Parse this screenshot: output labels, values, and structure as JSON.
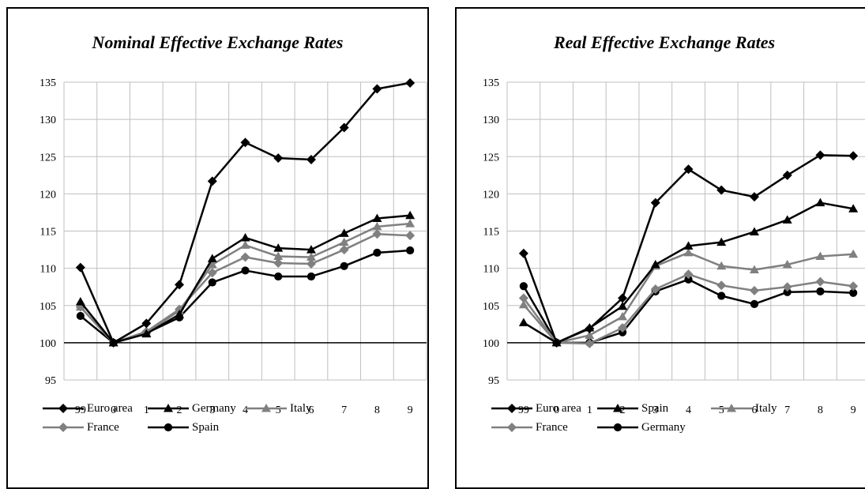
{
  "chart_data": [
    {
      "type": "line",
      "title": "Nominal Effective Exchange Rates",
      "categories": [
        "99",
        "0",
        "1",
        "2",
        "3",
        "4",
        "5",
        "6",
        "7",
        "8",
        "9"
      ],
      "ylim": [
        95,
        135
      ],
      "yticks": [
        "95",
        "100",
        "105",
        "110",
        "115",
        "120",
        "125",
        "130",
        "135"
      ],
      "grid": true,
      "legend_position": "bottom",
      "series": [
        {
          "name": "Euro area",
          "color": "#000000",
          "marker": "diamond",
          "values": [
            110.1,
            100,
            102.6,
            107.8,
            121.7,
            126.9,
            124.8,
            124.6,
            128.9,
            134.1,
            134.9
          ]
        },
        {
          "name": "Germany",
          "color": "#000000",
          "marker": "triangle",
          "values": [
            105.5,
            100,
            101.2,
            103.8,
            111.3,
            114.1,
            112.7,
            112.5,
            114.7,
            116.7,
            117.1
          ]
        },
        {
          "name": "Italy",
          "color": "#808080",
          "marker": "triangle",
          "values": [
            104.8,
            100,
            101.3,
            104.3,
            110.5,
            113.1,
            111.6,
            111.5,
            113.5,
            115.6,
            116.0
          ]
        },
        {
          "name": "France",
          "color": "#808080",
          "marker": "diamond",
          "values": [
            104.8,
            100,
            101.5,
            104.5,
            109.4,
            111.5,
            110.7,
            110.6,
            112.5,
            114.6,
            114.4
          ]
        },
        {
          "name": "Spain",
          "color": "#000000",
          "marker": "circle",
          "values": [
            103.6,
            100,
            101.3,
            103.4,
            108.1,
            109.7,
            108.9,
            108.9,
            110.3,
            112.1,
            112.4
          ]
        }
      ]
    },
    {
      "type": "line",
      "title": "Real Effective Exchange Rates",
      "categories": [
        "99",
        "0",
        "1",
        "2",
        "3",
        "4",
        "5",
        "6",
        "7",
        "8",
        "9"
      ],
      "ylim": [
        95,
        135
      ],
      "yticks": [
        "95",
        "100",
        "105",
        "110",
        "115",
        "120",
        "125",
        "130",
        "135"
      ],
      "grid": true,
      "legend_position": "bottom",
      "series": [
        {
          "name": "Euro area",
          "color": "#000000",
          "marker": "diamond",
          "values": [
            112.0,
            100,
            101.9,
            106.0,
            118.8,
            123.3,
            120.5,
            119.6,
            122.5,
            125.2,
            125.1
          ]
        },
        {
          "name": "Spain",
          "color": "#000000",
          "marker": "triangle",
          "values": [
            102.7,
            100,
            102.0,
            104.9,
            110.5,
            113.0,
            113.5,
            114.9,
            116.5,
            118.8,
            118.0
          ]
        },
        {
          "name": "Italy",
          "color": "#808080",
          "marker": "triangle",
          "values": [
            105.1,
            100,
            101.0,
            103.5,
            110.3,
            112.1,
            110.3,
            109.8,
            110.5,
            111.6,
            111.9
          ]
        },
        {
          "name": "France",
          "color": "#808080",
          "marker": "diamond",
          "values": [
            106.0,
            100,
            99.9,
            102.0,
            107.2,
            109.2,
            107.7,
            107.0,
            107.5,
            108.2,
            107.6
          ]
        },
        {
          "name": "Germany",
          "color": "#000000",
          "marker": "circle",
          "values": [
            107.6,
            100,
            100.0,
            101.4,
            106.9,
            108.5,
            106.3,
            105.2,
            106.8,
            106.9,
            106.7
          ]
        }
      ]
    }
  ]
}
